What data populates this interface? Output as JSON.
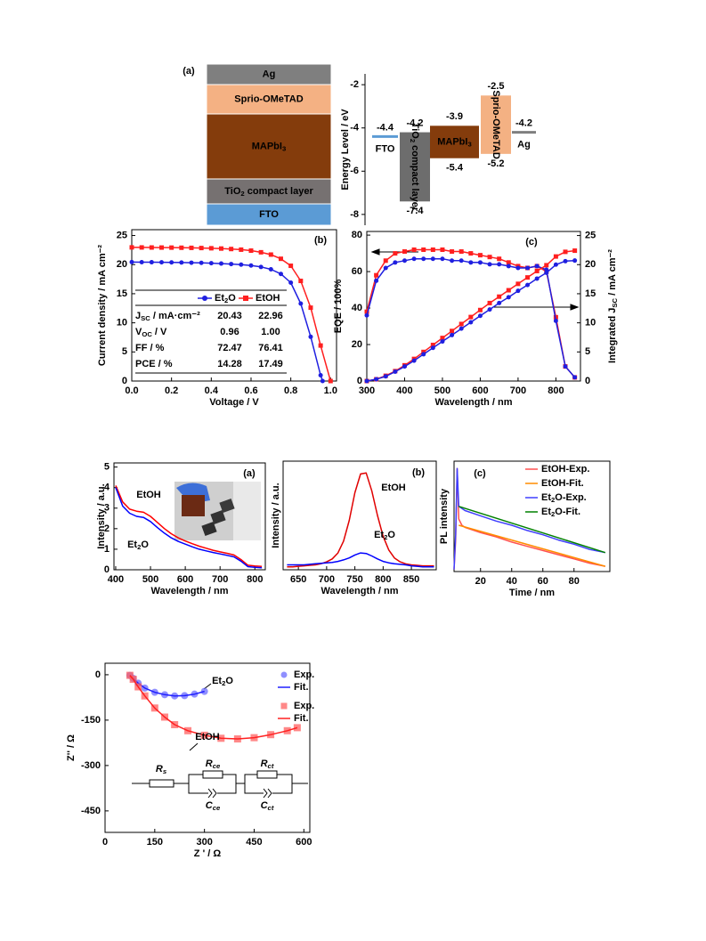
{
  "device_stack": {
    "panel": "(a)",
    "layers": [
      {
        "name": "Ag",
        "color": "#7f7f7f"
      },
      {
        "name": "Sprio-OMeTAD",
        "color": "#f4b183"
      },
      {
        "name": [
          "MAPbI",
          "3"
        ],
        "color": "#843c0c"
      },
      {
        "name": [
          "TiO",
          "2",
          " compact layer"
        ],
        "color": "#767171"
      },
      {
        "name": "FTO",
        "color": "#5b9bd5"
      }
    ]
  },
  "chart_data": [
    {
      "type": "energy_levels",
      "ylabel": "Energy Level / eV",
      "ylim": [
        -8.5,
        -1.5
      ],
      "yticks": [
        -2,
        -4,
        -6,
        -8
      ],
      "levels": [
        {
          "name": "FTO",
          "level": -4.4,
          "color": "#5b9bd5"
        },
        {
          "name": [
            "TiO",
            "2",
            " compact layer"
          ],
          "top": -4.2,
          "bottom": -7.4,
          "color": "#6d6d6d"
        },
        {
          "name": [
            "MAPbI",
            "3"
          ],
          "top": -3.9,
          "bottom": -5.4,
          "color": "#843c0c"
        },
        {
          "name": "Sprio-OMeTAD",
          "top": -2.5,
          "bottom": -5.2,
          "color": "#f4b183"
        },
        {
          "name": "Ag",
          "level": -4.2,
          "color": "#7f7f7f"
        }
      ]
    },
    {
      "type": "line",
      "panel": "(b)",
      "xlabel": "Voltage / V",
      "ylabel": "Current density / mA cm⁻²",
      "xlim": [
        0,
        1.03
      ],
      "xticks": [
        {
          "value": 0,
          "label": "0.0"
        },
        0.2,
        0.4,
        0.6,
        0.8,
        {
          "value": 1,
          "label": "1.0"
        }
      ],
      "ylim": [
        0,
        26
      ],
      "yticks": [
        0,
        5,
        10,
        15,
        20,
        25
      ],
      "series": [
        {
          "name": [
            "Et",
            "2",
            "O"
          ],
          "color": "#1f1fe0",
          "style": "line+markers",
          "marker": "circle",
          "x": [
            0,
            0.05,
            0.1,
            0.15,
            0.2,
            0.25,
            0.3,
            0.35,
            0.4,
            0.45,
            0.5,
            0.55,
            0.6,
            0.65,
            0.7,
            0.75,
            0.8,
            0.85,
            0.9,
            0.95,
            0.96
          ],
          "values": [
            20.43,
            20.42,
            20.41,
            20.4,
            20.38,
            20.36,
            20.33,
            20.3,
            20.25,
            20.18,
            20.1,
            20.0,
            19.85,
            19.6,
            19.2,
            18.4,
            16.9,
            13.3,
            7.6,
            1.0,
            0
          ]
        },
        {
          "name": "EtOH",
          "color": "#ff1f1f",
          "style": "line+markers",
          "marker": "square",
          "x": [
            0,
            0.05,
            0.1,
            0.15,
            0.2,
            0.25,
            0.3,
            0.35,
            0.4,
            0.45,
            0.5,
            0.55,
            0.6,
            0.65,
            0.7,
            0.75,
            0.8,
            0.85,
            0.9,
            0.95,
            1.0
          ],
          "values": [
            22.96,
            22.95,
            22.94,
            22.93,
            22.92,
            22.9,
            22.88,
            22.85,
            22.81,
            22.76,
            22.68,
            22.57,
            22.4,
            22.12,
            21.72,
            21.0,
            19.8,
            17.2,
            12.6,
            6.1,
            0
          ]
        }
      ],
      "table": {
        "rows": [
          {
            "label": [
              "J",
              "SC",
              " / mA·cm⁻²"
            ],
            "cells": [
              "20.43",
              "22.96"
            ]
          },
          {
            "label": [
              "V",
              "OC",
              " / V"
            ],
            "cells": [
              "0.96",
              "1.00"
            ]
          },
          {
            "label": "FF / %",
            "cells": [
              "72.47",
              "76.41"
            ]
          },
          {
            "label": "PCE / %",
            "cells": [
              "14.28",
              "17.49"
            ]
          }
        ]
      }
    },
    {
      "type": "line",
      "panel": "(c)",
      "xlabel": "Wavelength / nm",
      "ylabel": "EQE / 100%",
      "y2label": [
        "Integrated J",
        "SC",
        " / mA cm⁻²"
      ],
      "xlim": [
        300,
        865
      ],
      "xticks": [
        300,
        400,
        500,
        600,
        700,
        800
      ],
      "ylim": [
        0,
        82
      ],
      "yticks": [
        0,
        20,
        40,
        60,
        80
      ],
      "y2lim": [
        0,
        25.7
      ],
      "y2ticks": [
        0,
        5,
        10,
        15,
        20,
        25
      ],
      "x": [
        300,
        325,
        350,
        375,
        400,
        425,
        450,
        475,
        500,
        525,
        550,
        575,
        600,
        625,
        650,
        675,
        700,
        725,
        750,
        775,
        800,
        825,
        850
      ],
      "series": [
        {
          "color": "#ff1f1f",
          "style": "line+markers",
          "marker": "square",
          "values": [
            38,
            58,
            66,
            70,
            71,
            72,
            72,
            72,
            72,
            71,
            71,
            70,
            69,
            68,
            67,
            65,
            63,
            62,
            63,
            60,
            35,
            8,
            2
          ]
        },
        {
          "color": "#1f1fe0",
          "style": "line+markers",
          "marker": "circle",
          "values": [
            36,
            55,
            62,
            65,
            66,
            67,
            67,
            67,
            67,
            66,
            66,
            65,
            65,
            64,
            64,
            63,
            62,
            62,
            63,
            61,
            33,
            8,
            2
          ]
        },
        {
          "color": "#ff1f1f",
          "style": "line+markers",
          "marker": "square",
          "axis": "y2",
          "values": [
            0,
            0.3,
            0.9,
            1.7,
            2.7,
            3.8,
            5.0,
            6.2,
            7.4,
            8.6,
            9.8,
            11.0,
            12.2,
            13.4,
            14.5,
            15.6,
            16.7,
            17.8,
            18.9,
            19.9,
            21.4,
            22.2,
            22.4
          ]
        },
        {
          "color": "#1f1fe0",
          "style": "line+markers",
          "marker": "circle",
          "axis": "y2",
          "values": [
            0,
            0.3,
            0.8,
            1.6,
            2.5,
            3.5,
            4.6,
            5.7,
            6.8,
            7.9,
            9.0,
            10.1,
            11.2,
            12.3,
            13.4,
            14.4,
            15.5,
            16.5,
            17.6,
            18.6,
            20.0,
            20.6,
            20.7
          ]
        }
      ]
    },
    {
      "type": "line",
      "panel": "(a)",
      "xlabel": "Wavelength / nm",
      "ylabel": "Intensity / a.u.",
      "xlim": [
        395,
        830
      ],
      "xticks": [
        400,
        500,
        600,
        700,
        800
      ],
      "ylim": [
        0,
        5.2
      ],
      "yticks": [
        0,
        1,
        2,
        3,
        4,
        5
      ],
      "x": [
        400,
        420,
        440,
        460,
        480,
        500,
        520,
        540,
        560,
        580,
        600,
        620,
        640,
        660,
        680,
        700,
        720,
        740,
        760,
        780,
        800,
        820
      ],
      "series": [
        {
          "name": "EtOH",
          "color": "#ff0000",
          "style": "line",
          "values": [
            4.1,
            3.3,
            2.95,
            2.85,
            2.8,
            2.6,
            2.3,
            2.0,
            1.75,
            1.55,
            1.4,
            1.27,
            1.15,
            1.05,
            0.95,
            0.87,
            0.8,
            0.72,
            0.5,
            0.22,
            0.18,
            0.16
          ]
        },
        {
          "name": [
            "Et",
            "2",
            "O"
          ],
          "color": "#0000ff",
          "style": "line",
          "values": [
            4.0,
            3.1,
            2.75,
            2.6,
            2.55,
            2.35,
            2.05,
            1.78,
            1.55,
            1.38,
            1.25,
            1.12,
            1.0,
            0.92,
            0.84,
            0.77,
            0.7,
            0.63,
            0.42,
            0.15,
            0.12,
            0.1
          ]
        }
      ]
    },
    {
      "type": "line",
      "panel": "(b)",
      "xlabel": "Wavelength / nm",
      "ylabel": "Intensity / a.u.",
      "xlim": [
        623,
        894
      ],
      "xticks": [
        650,
        700,
        750,
        800,
        850
      ],
      "ylim": [
        0,
        1.1
      ],
      "x": [
        630,
        640,
        650,
        660,
        670,
        680,
        690,
        700,
        710,
        720,
        730,
        740,
        750,
        760,
        770,
        780,
        790,
        800,
        810,
        820,
        830,
        840,
        850,
        860,
        870,
        880,
        890
      ],
      "series": [
        {
          "name": "EtOH",
          "color": "#e00000",
          "style": "line",
          "values": [
            0.03,
            0.03,
            0.035,
            0.04,
            0.045,
            0.05,
            0.06,
            0.08,
            0.11,
            0.17,
            0.29,
            0.5,
            0.78,
            0.97,
            0.98,
            0.8,
            0.55,
            0.34,
            0.2,
            0.12,
            0.08,
            0.06,
            0.05,
            0.045,
            0.04,
            0.04,
            0.04
          ]
        },
        {
          "name": [
            "Et",
            "2",
            "O"
          ],
          "color": "#0000ff",
          "style": "line",
          "values": [
            0.05,
            0.05,
            0.05,
            0.05,
            0.055,
            0.06,
            0.065,
            0.07,
            0.075,
            0.085,
            0.1,
            0.12,
            0.15,
            0.17,
            0.165,
            0.14,
            0.11,
            0.085,
            0.07,
            0.06,
            0.055,
            0.05,
            0.04,
            0.035,
            0.03,
            0.03,
            0.03
          ]
        }
      ]
    },
    {
      "type": "line",
      "panel": "(c)",
      "xlabel": "Time / nm",
      "ylabel": "PL intensity",
      "legend": "upper right",
      "xlim": [
        3,
        103
      ],
      "xticks": [
        20,
        40,
        60,
        80
      ],
      "ylim": [
        0,
        1.05
      ],
      "series": [
        {
          "name": "EtOH-Exp.",
          "color": "#ff5050",
          "style": "line",
          "x": [
            3,
            4,
            5,
            6,
            8,
            10,
            20,
            30,
            40,
            50,
            60,
            70,
            80,
            90,
            100
          ],
          "values": [
            0.02,
            0.3,
            0.98,
            0.5,
            0.44,
            0.42,
            0.37,
            0.33,
            0.28,
            0.24,
            0.2,
            0.16,
            0.12,
            0.08,
            0.05
          ]
        },
        {
          "name": "EtOH-Fit.",
          "color": "#ff8c00",
          "style": "line",
          "x": [
            6,
            100
          ],
          "values": [
            0.44,
            0.05
          ]
        },
        {
          "name": [
            "Et",
            "2",
            "O-Exp."
          ],
          "color": "#3f3fff",
          "style": "line",
          "x": [
            3,
            4,
            5,
            6,
            8,
            10,
            20,
            30,
            40,
            50,
            60,
            70,
            80,
            90,
            100
          ],
          "values": [
            0.02,
            0.35,
            0.98,
            0.62,
            0.6,
            0.58,
            0.53,
            0.48,
            0.44,
            0.39,
            0.35,
            0.3,
            0.26,
            0.21,
            0.18
          ]
        },
        {
          "name": [
            "Et",
            "2",
            "O-Fit."
          ],
          "color": "#008000",
          "style": "line",
          "x": [
            6,
            100
          ],
          "values": [
            0.62,
            0.18
          ]
        }
      ]
    },
    {
      "type": "line",
      "xlabel": "Z ' / Ω",
      "ylabel": "Z'' / Ω",
      "legend": "upper right",
      "xlim": [
        0,
        618
      ],
      "xticks": [
        0,
        150,
        300,
        450,
        600
      ],
      "ylim": [
        -521,
        38
      ],
      "yticks": [
        0,
        -150,
        -300,
        -450
      ],
      "series": [
        {
          "name": "Exp.",
          "color": "#6b6bff",
          "style": "markers",
          "marker": "circle",
          "x": [
            75,
            85,
            100,
            120,
            150,
            180,
            210,
            240,
            270,
            300
          ],
          "values": [
            -2,
            -12,
            -28,
            -44,
            -58,
            -66,
            -70,
            -69,
            -64,
            -55
          ]
        },
        {
          "name": "Fit.",
          "color": "#2020ff",
          "style": "line",
          "x": [
            75,
            85,
            100,
            120,
            150,
            180,
            210,
            240,
            270,
            300
          ],
          "values": [
            -2,
            -12,
            -28,
            -44,
            -58,
            -66,
            -70,
            -69,
            -64,
            -55
          ]
        },
        {
          "name": "Exp.",
          "color": "#ff6060",
          "style": "markers",
          "marker": "square",
          "x": [
            75,
            85,
            100,
            120,
            150,
            180,
            210,
            250,
            300,
            350,
            400,
            450,
            500,
            550,
            580
          ],
          "values": [
            -2,
            -15,
            -40,
            -70,
            -110,
            -140,
            -165,
            -185,
            -200,
            -210,
            -212,
            -208,
            -198,
            -185,
            -175
          ]
        },
        {
          "name": "Fit.",
          "color": "#ff2020",
          "style": "line",
          "x": [
            75,
            85,
            100,
            120,
            150,
            180,
            210,
            250,
            300,
            350,
            400,
            450,
            500,
            550,
            580
          ],
          "values": [
            -2,
            -15,
            -40,
            -70,
            -110,
            -140,
            -165,
            -185,
            -200,
            -210,
            -212,
            -208,
            -198,
            -185,
            -175
          ]
        }
      ],
      "annotations": [
        {
          "text": [
            "Et",
            "2",
            "O"
          ]
        },
        {
          "text": "EtOH"
        }
      ]
    }
  ],
  "circuit": {
    "labels": [
      [
        "R",
        "s"
      ],
      [
        "R",
        "ce"
      ],
      [
        "C",
        "ce"
      ],
      [
        "R",
        "ct"
      ],
      [
        "C",
        "ct"
      ]
    ]
  }
}
